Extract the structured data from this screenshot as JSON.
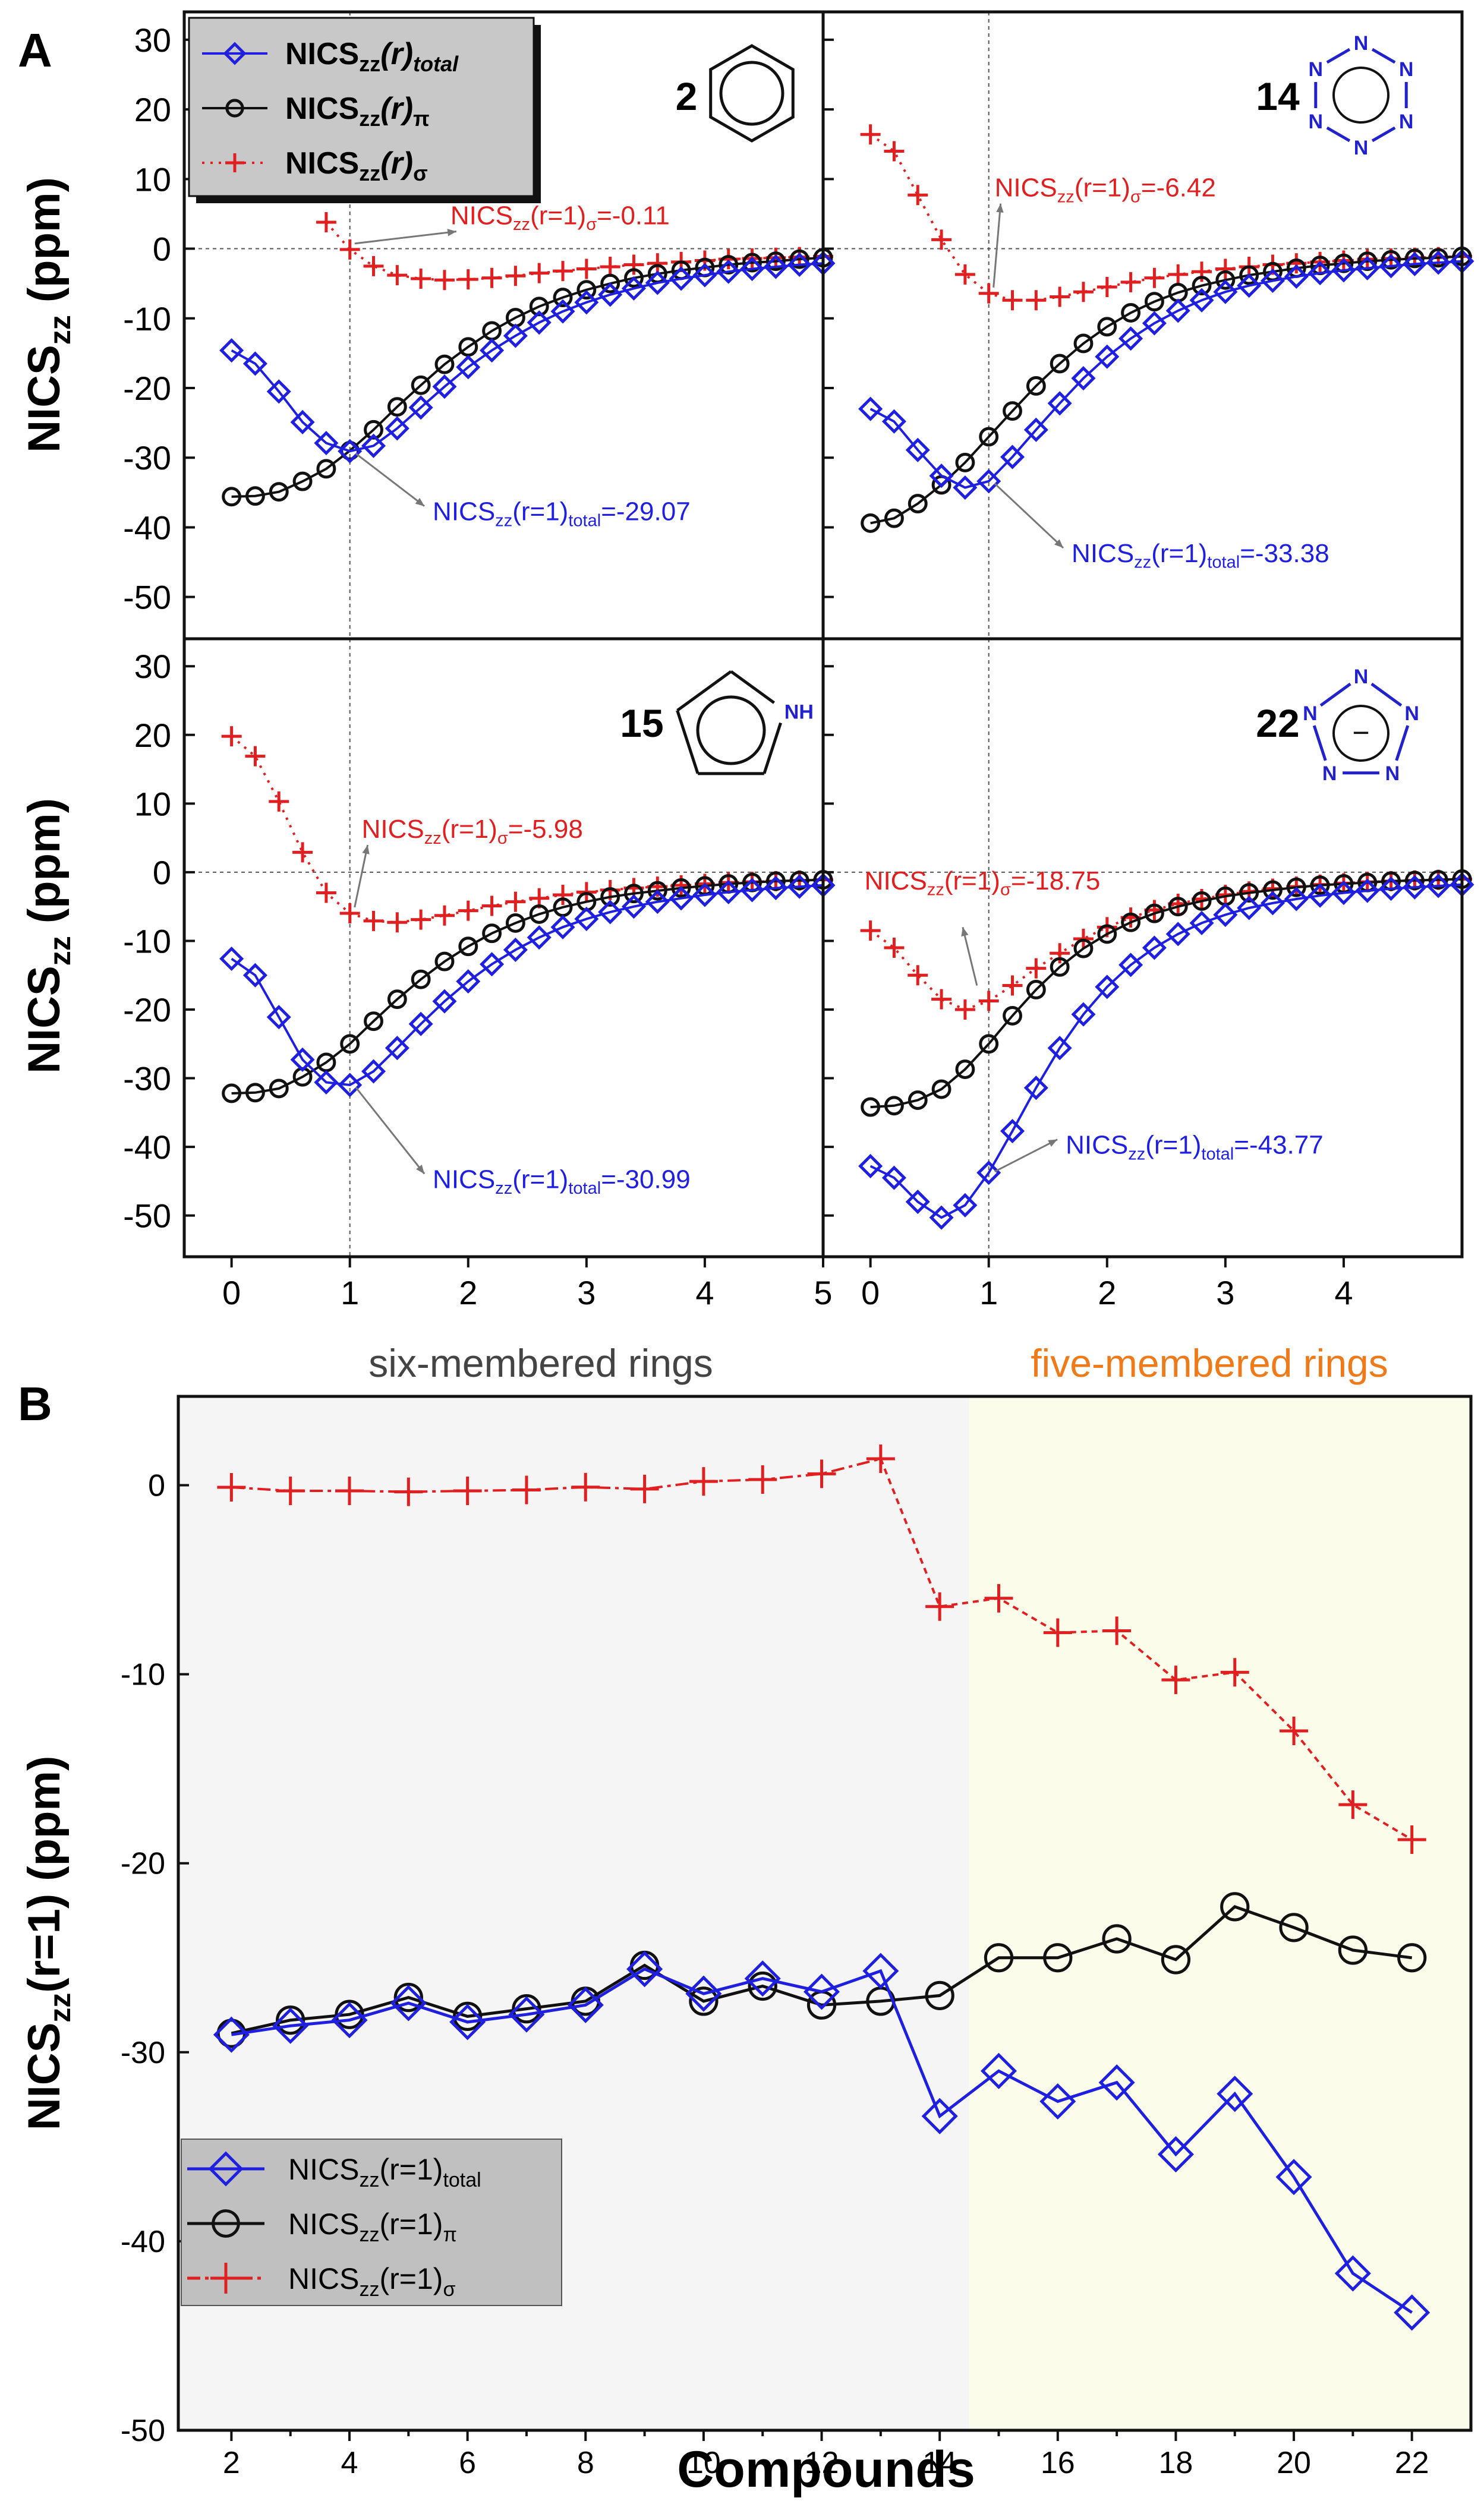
{
  "figure": {
    "panelA_label": "A",
    "panelB_label": "B"
  },
  "colors": {
    "total": "#1f1fe0",
    "pi": "#111111",
    "sigma": "#e02020",
    "six_bg": "#f5f5f5",
    "five_bg": "#fcfcea",
    "section_six": "#444444",
    "section_five": "#ee7a1a"
  },
  "labels": {
    "ylabel_top": "NICSzz (ppm)",
    "ylabel_main": "NICS",
    "ylabel_sub": "zz",
    "ylabel_units": " (ppm)",
    "xlabel_B": "Compounds",
    "ylabel_B_main": "NICS",
    "ylabel_B_sub": "zz",
    "ylabel_B_rest": "(r=1) (ppm)",
    "section_six": "six-membered rings",
    "section_five": "five-membered rings",
    "legendA": [
      {
        "key": "total",
        "main": "NICS",
        "sub": "zz",
        "mid": "(r)",
        "tail": "total"
      },
      {
        "key": "pi",
        "main": "NICS",
        "sub": "zz",
        "mid": "(r)",
        "tail": "π"
      },
      {
        "key": "sigma",
        "main": "NICS",
        "sub": "zz",
        "mid": "(r)",
        "tail": "σ"
      }
    ],
    "legendB": [
      {
        "key": "total",
        "main": "NICS",
        "sub": "zz",
        "mid": "(r=1)",
        "tail": "total"
      },
      {
        "key": "pi",
        "main": "NICS",
        "sub": "zz",
        "mid": "(r=1)",
        "tail": "π"
      },
      {
        "key": "sigma",
        "main": "NICS",
        "sub": "zz",
        "mid": "(r=1)",
        "tail": "σ"
      }
    ],
    "molecule_N": "N",
    "molecule_NH": "NH",
    "molecule_minus": "−"
  },
  "chart_data": [
    {
      "id": "A2",
      "type": "line",
      "compound": "2",
      "structure": "benzene",
      "xlim": [
        -0.4,
        5
      ],
      "ylim": [
        -56,
        34
      ],
      "xticks": [
        0,
        1,
        2,
        3,
        4,
        5
      ],
      "yticks": [
        30,
        20,
        10,
        0,
        -10,
        -20,
        -30,
        -40,
        -50
      ],
      "annotations": [
        {
          "series": "sigma",
          "main": "NICS",
          "sub": "zz",
          "mid": "(r=1)",
          "tail": "σ",
          "value": "=-0.11",
          "x": 1,
          "y": -0.11
        },
        {
          "series": "total",
          "main": "NICS",
          "sub": "zz",
          "mid": "(r=1)",
          "tail": "total",
          "value": "=-29.07",
          "x": 1,
          "y": -29.07
        }
      ],
      "series": [
        {
          "name": "total",
          "x": [
            0,
            0.2,
            0.4,
            0.6,
            0.8,
            1.0,
            1.2,
            1.4,
            1.6,
            1.8,
            2.0,
            2.2,
            2.4,
            2.6,
            2.8,
            3.0,
            3.2,
            3.4,
            3.6,
            3.8,
            4.0,
            4.2,
            4.4,
            4.6,
            4.8,
            5.0
          ],
          "y": [
            -14.6,
            -16.5,
            -20.5,
            -24.9,
            -27.9,
            -29.07,
            -28.3,
            -25.8,
            -22.8,
            -19.8,
            -17.0,
            -14.6,
            -12.5,
            -10.6,
            -9.0,
            -7.7,
            -6.6,
            -5.7,
            -4.9,
            -4.3,
            -3.8,
            -3.3,
            -2.9,
            -2.6,
            -2.3,
            -2.1
          ]
        },
        {
          "name": "pi",
          "x": [
            0,
            0.2,
            0.4,
            0.6,
            0.8,
            1.0,
            1.2,
            1.4,
            1.6,
            1.8,
            2.0,
            2.2,
            2.4,
            2.6,
            2.8,
            3.0,
            3.2,
            3.4,
            3.6,
            3.8,
            4.0,
            4.2,
            4.4,
            4.6,
            4.8,
            5.0
          ],
          "y": [
            -35.6,
            -35.5,
            -34.9,
            -33.4,
            -31.6,
            -29.0,
            -26.0,
            -22.7,
            -19.6,
            -16.6,
            -14.1,
            -11.8,
            -9.9,
            -8.3,
            -7.0,
            -5.9,
            -5.0,
            -4.2,
            -3.6,
            -3.1,
            -2.7,
            -2.3,
            -2.0,
            -1.8,
            -1.5,
            -1.3
          ]
        },
        {
          "name": "sigma",
          "x": [
            0.8,
            1.0,
            1.2,
            1.4,
            1.6,
            1.8,
            2.0,
            2.2,
            2.4,
            2.6,
            2.8,
            3.0,
            3.2,
            3.4,
            3.6,
            3.8,
            4.0,
            4.2,
            4.4,
            4.6,
            4.8,
            5.0
          ],
          "y": [
            3.8,
            -0.11,
            -2.5,
            -3.8,
            -4.3,
            -4.5,
            -4.4,
            -4.2,
            -3.9,
            -3.5,
            -3.2,
            -2.9,
            -2.6,
            -2.3,
            -2.1,
            -1.9,
            -1.7,
            -1.5,
            -1.4,
            -1.3,
            -1.2,
            -1.1
          ]
        }
      ]
    },
    {
      "id": "A14",
      "type": "line",
      "compound": "14",
      "structure": "hexazine",
      "xlim": [
        -0.4,
        5
      ],
      "ylim": [
        -56,
        34
      ],
      "xticks": [
        0,
        1,
        2,
        3,
        4
      ],
      "yticks": [
        30,
        20,
        10,
        0,
        -10,
        -20,
        -30,
        -40,
        -50
      ],
      "annotations": [
        {
          "series": "sigma",
          "main": "NICS",
          "sub": "zz",
          "mid": "(r=1)",
          "tail": "σ",
          "value": "=-6.42",
          "x": 1,
          "y": -6.42
        },
        {
          "series": "total",
          "main": "NICS",
          "sub": "zz",
          "mid": "(r=1)",
          "tail": "total",
          "value": "=-33.38",
          "x": 1,
          "y": -33.38
        }
      ],
      "series": [
        {
          "name": "total",
          "x": [
            0,
            0.2,
            0.4,
            0.6,
            0.8,
            1.0,
            1.2,
            1.4,
            1.6,
            1.8,
            2.0,
            2.2,
            2.4,
            2.6,
            2.8,
            3.0,
            3.2,
            3.4,
            3.6,
            3.8,
            4.0,
            4.2,
            4.4,
            4.6,
            4.8,
            5.0
          ],
          "y": [
            -23.0,
            -24.8,
            -28.9,
            -32.6,
            -34.3,
            -33.38,
            -29.9,
            -26.0,
            -22.2,
            -18.6,
            -15.5,
            -12.9,
            -10.7,
            -8.9,
            -7.4,
            -6.2,
            -5.3,
            -4.6,
            -4.0,
            -3.5,
            -3.1,
            -2.8,
            -2.5,
            -2.2,
            -2.0,
            -1.8
          ]
        },
        {
          "name": "pi",
          "x": [
            0,
            0.2,
            0.4,
            0.6,
            0.8,
            1.0,
            1.2,
            1.4,
            1.6,
            1.8,
            2.0,
            2.2,
            2.4,
            2.6,
            2.8,
            3.0,
            3.2,
            3.4,
            3.6,
            3.8,
            4.0,
            4.2,
            4.4,
            4.6,
            4.8,
            5.0
          ],
          "y": [
            -39.4,
            -38.7,
            -36.6,
            -33.9,
            -30.7,
            -27.0,
            -23.3,
            -19.7,
            -16.5,
            -13.6,
            -11.2,
            -9.2,
            -7.6,
            -6.3,
            -5.3,
            -4.5,
            -3.8,
            -3.3,
            -2.8,
            -2.4,
            -2.1,
            -1.8,
            -1.6,
            -1.4,
            -1.3,
            -1.1
          ]
        },
        {
          "name": "sigma",
          "x": [
            0,
            0.2,
            0.4,
            0.6,
            0.8,
            1.0,
            1.2,
            1.4,
            1.6,
            1.8,
            2.0,
            2.2,
            2.4,
            2.6,
            2.8,
            3.0,
            3.2,
            3.4,
            3.6,
            3.8,
            4.0,
            4.2,
            4.4,
            4.6,
            4.8,
            5.0
          ],
          "y": [
            16.4,
            14.0,
            7.7,
            1.3,
            -3.7,
            -6.42,
            -7.4,
            -7.4,
            -6.9,
            -6.2,
            -5.5,
            -4.8,
            -4.2,
            -3.7,
            -3.3,
            -2.9,
            -2.6,
            -2.3,
            -2.1,
            -1.9,
            -1.7,
            -1.5,
            -1.4,
            -1.3,
            -1.2,
            -1.1
          ]
        }
      ]
    },
    {
      "id": "A15",
      "type": "line",
      "compound": "15",
      "structure": "pyrrole",
      "xlim": [
        -0.4,
        5
      ],
      "ylim": [
        -56,
        34
      ],
      "xticks": [
        0,
        1,
        2,
        3,
        4,
        5
      ],
      "yticks": [
        30,
        20,
        10,
        0,
        -10,
        -20,
        -30,
        -40,
        -50
      ],
      "annotations": [
        {
          "series": "sigma",
          "main": "NICS",
          "sub": "zz",
          "mid": "(r=1)",
          "tail": "σ",
          "value": "=-5.98",
          "x": 1,
          "y": -5.98
        },
        {
          "series": "total",
          "main": "NICS",
          "sub": "zz",
          "mid": "(r=1)",
          "tail": "total",
          "value": "=-30.99",
          "x": 1,
          "y": -30.99
        }
      ],
      "series": [
        {
          "name": "total",
          "x": [
            0,
            0.2,
            0.4,
            0.6,
            0.8,
            1.0,
            1.2,
            1.4,
            1.6,
            1.8,
            2.0,
            2.2,
            2.4,
            2.6,
            2.8,
            3.0,
            3.2,
            3.4,
            3.6,
            3.8,
            4.0,
            4.2,
            4.4,
            4.6,
            4.8,
            5.0
          ],
          "y": [
            -12.6,
            -15.0,
            -21.1,
            -27.3,
            -30.6,
            -30.99,
            -29.0,
            -25.6,
            -22.1,
            -18.8,
            -15.9,
            -13.4,
            -11.3,
            -9.5,
            -8.0,
            -6.8,
            -5.8,
            -5.0,
            -4.3,
            -3.8,
            -3.3,
            -2.9,
            -2.6,
            -2.3,
            -2.1,
            -1.9
          ]
        },
        {
          "name": "pi",
          "x": [
            0,
            0.2,
            0.4,
            0.6,
            0.8,
            1.0,
            1.2,
            1.4,
            1.6,
            1.8,
            2.0,
            2.2,
            2.4,
            2.6,
            2.8,
            3.0,
            3.2,
            3.4,
            3.6,
            3.8,
            4.0,
            4.2,
            4.4,
            4.6,
            4.8,
            5.0
          ],
          "y": [
            -32.2,
            -32.1,
            -31.5,
            -29.8,
            -27.7,
            -25.0,
            -21.7,
            -18.5,
            -15.6,
            -13.0,
            -10.8,
            -8.9,
            -7.4,
            -6.1,
            -5.1,
            -4.3,
            -3.6,
            -3.1,
            -2.7,
            -2.3,
            -2.0,
            -1.7,
            -1.5,
            -1.3,
            -1.2,
            -1.1
          ]
        },
        {
          "name": "sigma",
          "x": [
            0,
            0.2,
            0.4,
            0.6,
            0.8,
            1.0,
            1.2,
            1.4,
            1.6,
            1.8,
            2.0,
            2.2,
            2.4,
            2.6,
            2.8,
            3.0,
            3.2,
            3.4,
            3.6,
            3.8,
            4.0,
            4.2,
            4.4,
            4.6,
            4.8,
            5.0
          ],
          "y": [
            19.8,
            16.9,
            10.3,
            2.9,
            -3.0,
            -5.98,
            -7.1,
            -7.3,
            -6.9,
            -6.3,
            -5.6,
            -4.9,
            -4.3,
            -3.8,
            -3.3,
            -2.9,
            -2.6,
            -2.3,
            -2.1,
            -1.9,
            -1.7,
            -1.5,
            -1.4,
            -1.3,
            -1.2,
            -1.1
          ]
        }
      ]
    },
    {
      "id": "A22",
      "type": "line",
      "compound": "22",
      "structure": "pentazolate",
      "xlim": [
        -0.4,
        5
      ],
      "ylim": [
        -56,
        34
      ],
      "xticks": [
        0,
        1,
        2,
        3,
        4
      ],
      "yticks": [
        30,
        20,
        10,
        0,
        -10,
        -20,
        -30,
        -40,
        -50
      ],
      "annotations": [
        {
          "series": "sigma",
          "main": "NICS",
          "sub": "zz",
          "mid": "(r=1)",
          "tail": "σ",
          "value": "=-18.75",
          "x": 1,
          "y": -18.75
        },
        {
          "series": "total",
          "main": "NICS",
          "sub": "zz",
          "mid": "(r=1)",
          "tail": "total",
          "value": "=-43.77",
          "x": 1,
          "y": -43.77
        }
      ],
      "series": [
        {
          "name": "total",
          "x": [
            0,
            0.2,
            0.4,
            0.6,
            0.8,
            1.0,
            1.2,
            1.4,
            1.6,
            1.8,
            2.0,
            2.2,
            2.4,
            2.6,
            2.8,
            3.0,
            3.2,
            3.4,
            3.6,
            3.8,
            4.0,
            4.2,
            4.4,
            4.6,
            4.8,
            5.0
          ],
          "y": [
            -42.8,
            -44.5,
            -48.0,
            -50.3,
            -48.5,
            -43.77,
            -37.7,
            -31.4,
            -25.6,
            -20.7,
            -16.7,
            -13.5,
            -11.0,
            -9.0,
            -7.4,
            -6.2,
            -5.2,
            -4.5,
            -3.9,
            -3.4,
            -3.0,
            -2.7,
            -2.4,
            -2.2,
            -2.0,
            -1.8
          ]
        },
        {
          "name": "pi",
          "x": [
            0,
            0.2,
            0.4,
            0.6,
            0.8,
            1.0,
            1.2,
            1.4,
            1.6,
            1.8,
            2.0,
            2.2,
            2.4,
            2.6,
            2.8,
            3.0,
            3.2,
            3.4,
            3.6,
            3.8,
            4.0,
            4.2,
            4.4,
            4.6,
            4.8,
            5.0
          ],
          "y": [
            -34.2,
            -34.0,
            -33.2,
            -31.6,
            -28.7,
            -25.0,
            -20.9,
            -17.1,
            -13.8,
            -11.1,
            -9.0,
            -7.3,
            -6.0,
            -5.0,
            -4.2,
            -3.5,
            -3.0,
            -2.6,
            -2.2,
            -1.9,
            -1.7,
            -1.5,
            -1.3,
            -1.2,
            -1.1,
            -1.0
          ]
        },
        {
          "name": "sigma",
          "x": [
            0,
            0.2,
            0.4,
            0.6,
            0.8,
            1.0,
            1.2,
            1.4,
            1.6,
            1.8,
            2.0,
            2.2,
            2.4,
            2.6,
            2.8,
            3.0,
            3.2,
            3.4,
            3.6,
            3.8,
            4.0,
            4.2,
            4.4,
            4.6,
            4.8,
            5.0
          ],
          "y": [
            -8.5,
            -11.0,
            -15.0,
            -18.5,
            -20.0,
            -18.75,
            -16.5,
            -14.0,
            -11.8,
            -9.7,
            -8.0,
            -6.6,
            -5.5,
            -4.6,
            -3.9,
            -3.3,
            -2.8,
            -2.4,
            -2.1,
            -1.8,
            -1.6,
            -1.4,
            -1.3,
            -1.2,
            -1.1,
            -1.0
          ]
        }
      ]
    },
    {
      "id": "B",
      "type": "line",
      "title": "",
      "xlabel": "Compounds",
      "ylabel": "NICSzz(r=1) (ppm)",
      "xlim": [
        1.1,
        23.0
      ],
      "ylim": [
        -50,
        4.7
      ],
      "xticks": [
        2,
        4,
        6,
        8,
        10,
        12,
        14,
        16,
        18,
        20,
        22
      ],
      "yticks": [
        0,
        -10,
        -20,
        -30,
        -40,
        -50
      ],
      "categories": [
        2,
        3,
        4,
        5,
        6,
        7,
        8,
        9,
        10,
        11,
        12,
        13,
        14,
        15,
        16,
        17,
        18,
        19,
        20,
        21,
        22
      ],
      "series": [
        {
          "name": "total",
          "values": [
            -29.07,
            -28.6,
            -28.3,
            -27.4,
            -28.4,
            -28.0,
            -27.5,
            -25.6,
            -26.9,
            -26.1,
            -26.8,
            -25.7,
            -33.38,
            -30.99,
            -32.6,
            -31.6,
            -35.4,
            -32.2,
            -36.6,
            -41.7,
            -43.77
          ]
        },
        {
          "name": "pi",
          "values": [
            -29.0,
            -28.3,
            -28.0,
            -27.1,
            -28.1,
            -27.7,
            -27.3,
            -25.4,
            -27.3,
            -26.5,
            -27.5,
            -27.3,
            -27.0,
            -25.0,
            -25.0,
            -24.0,
            -25.1,
            -22.3,
            -23.4,
            -24.6,
            -25.0
          ]
        },
        {
          "name": "sigma",
          "values": [
            -0.11,
            -0.3,
            -0.3,
            -0.35,
            -0.3,
            -0.25,
            -0.1,
            -0.2,
            0.2,
            0.3,
            0.6,
            1.4,
            -6.42,
            -5.98,
            -7.8,
            -7.7,
            -10.3,
            -9.9,
            -13.0,
            -16.9,
            -18.75
          ]
        }
      ],
      "regions": [
        {
          "name": "six",
          "from": 1.1,
          "to": 14.5
        },
        {
          "name": "five",
          "from": 14.5,
          "to": 23.0
        }
      ]
    }
  ]
}
